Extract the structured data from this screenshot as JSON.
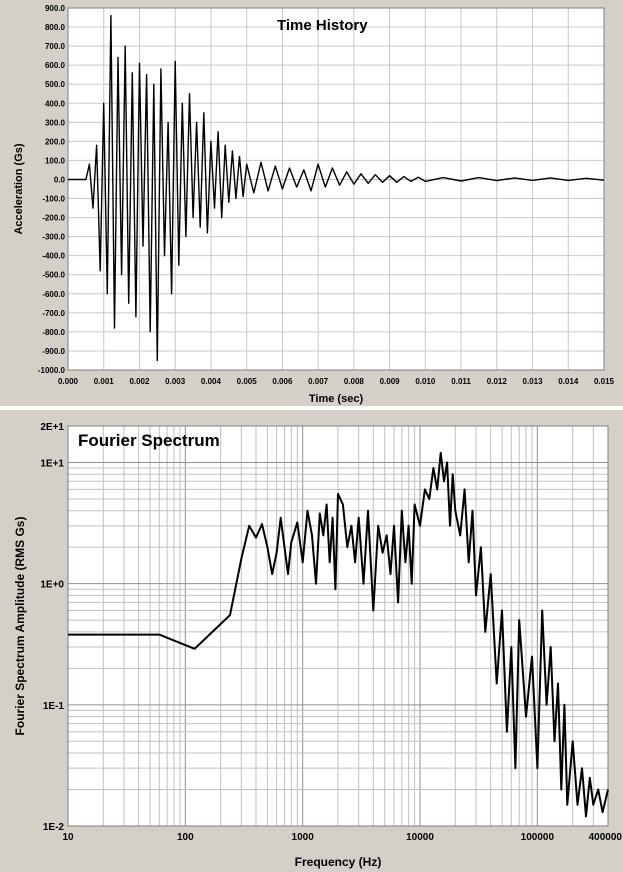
{
  "chart_data": [
    {
      "type": "line",
      "title": "Time History",
      "xlabel": "Time (sec)",
      "ylabel": "Acceleration (Gs)",
      "xlim": [
        0.0,
        0.015
      ],
      "ylim": [
        -1000.0,
        900.0
      ],
      "grid": true,
      "x_ticks": [
        "0.000",
        "0.001",
        "0.002",
        "0.003",
        "0.004",
        "0.005",
        "0.006",
        "0.007",
        "0.008",
        "0.009",
        "0.010",
        "0.011",
        "0.012",
        "0.013",
        "0.014",
        "0.015"
      ],
      "y_ticks": [
        "900.0",
        "800.0",
        "700.0",
        "600.0",
        "500.0",
        "400.0",
        "300.0",
        "200.0",
        "100.0",
        "0.0",
        "-100.0",
        "-200.0",
        "-300.0",
        "-400.0",
        "-500.0",
        "-600.0",
        "-700.0",
        "-800.0",
        "-900.0",
        "-1000.0"
      ],
      "series": [
        {
          "x": [
            0.0,
            0.0005,
            0.0006,
            0.0007,
            0.0008,
            0.0009,
            0.001,
            0.0011,
            0.0012,
            0.0013,
            0.0014,
            0.0015,
            0.0016,
            0.0017,
            0.0018,
            0.0019,
            0.002,
            0.0021,
            0.0022,
            0.0023,
            0.0024,
            0.0025,
            0.0026,
            0.0027,
            0.0028,
            0.0029,
            0.003,
            0.0031,
            0.0032,
            0.0033,
            0.0034,
            0.0035,
            0.0036,
            0.0037,
            0.0038,
            0.0039,
            0.004,
            0.0041,
            0.0042,
            0.0043,
            0.0044,
            0.0045,
            0.0046,
            0.0047,
            0.0048,
            0.0049,
            0.005,
            0.0052,
            0.0054,
            0.0056,
            0.0058,
            0.006,
            0.0062,
            0.0064,
            0.0066,
            0.0068,
            0.007,
            0.0072,
            0.0074,
            0.0076,
            0.0078,
            0.008,
            0.0082,
            0.0084,
            0.0086,
            0.0088,
            0.009,
            0.0092,
            0.0094,
            0.0096,
            0.0098,
            0.01,
            0.0105,
            0.011,
            0.0115,
            0.012,
            0.0125,
            0.013,
            0.0135,
            0.014,
            0.0145,
            0.015
          ],
          "values": [
            0,
            0,
            80,
            -150,
            180,
            -480,
            400,
            -600,
            860,
            -780,
            640,
            -500,
            700,
            -650,
            560,
            -720,
            610,
            -350,
            550,
            -800,
            500,
            -950,
            580,
            -400,
            300,
            -600,
            620,
            -450,
            400,
            -300,
            450,
            -200,
            300,
            -250,
            350,
            -280,
            200,
            -150,
            250,
            -200,
            180,
            -120,
            150,
            -100,
            120,
            -90,
            80,
            -70,
            90,
            -60,
            70,
            -50,
            60,
            -40,
            50,
            -60,
            80,
            -40,
            60,
            -30,
            40,
            -25,
            30,
            -20,
            25,
            -15,
            20,
            -15,
            15,
            -10,
            12,
            -10,
            10,
            -8,
            10,
            -6,
            8,
            -5,
            8,
            -5,
            6,
            -4
          ]
        }
      ]
    },
    {
      "type": "line",
      "title": "Fourier Spectrum",
      "xlabel": "Frequency (Hz)",
      "ylabel": "Fourier Spectrum Amplitude (RMS Gs)",
      "xscale": "log",
      "yscale": "log",
      "xlim": [
        10,
        400000
      ],
      "ylim": [
        0.01,
        20
      ],
      "grid": true,
      "x_ticks": [
        "10",
        "100",
        "1000",
        "10000",
        "100000",
        "400000"
      ],
      "y_ticks": [
        "2E+1",
        "1E+1",
        "1E+0",
        "1E-1",
        "1E-2"
      ],
      "series": [
        {
          "x": [
            10,
            60,
            120,
            240,
            300,
            350,
            400,
            450,
            500,
            550,
            600,
            650,
            700,
            750,
            800,
            900,
            1000,
            1100,
            1200,
            1300,
            1400,
            1500,
            1600,
            1700,
            1800,
            1900,
            2000,
            2200,
            2400,
            2600,
            2800,
            3000,
            3300,
            3600,
            4000,
            4400,
            4800,
            5200,
            5600,
            6000,
            6500,
            7000,
            7500,
            8000,
            8500,
            9000,
            10000,
            11000,
            12000,
            13000,
            14000,
            15000,
            16000,
            17000,
            18000,
            19000,
            20000,
            22000,
            24000,
            26000,
            28000,
            30000,
            33000,
            36000,
            40000,
            45000,
            50000,
            55000,
            60000,
            65000,
            70000,
            80000,
            90000,
            100000,
            110000,
            120000,
            130000,
            140000,
            150000,
            160000,
            170000,
            180000,
            200000,
            220000,
            240000,
            260000,
            280000,
            300000,
            330000,
            360000,
            400000
          ],
          "values": [
            0.38,
            0.38,
            0.29,
            0.55,
            1.6,
            3.0,
            2.4,
            3.1,
            2.0,
            1.2,
            1.8,
            3.5,
            2.0,
            1.2,
            2.2,
            3.2,
            1.5,
            4.0,
            2.5,
            1.0,
            3.8,
            2.5,
            4.5,
            1.5,
            3.5,
            0.9,
            5.5,
            4.5,
            2.0,
            3.0,
            1.5,
            3.5,
            1.0,
            4.0,
            0.6,
            3.0,
            1.8,
            2.5,
            1.2,
            3.0,
            0.7,
            4.0,
            1.5,
            3.0,
            1.0,
            4.5,
            3.0,
            6.0,
            5.0,
            9.0,
            6.0,
            12.0,
            7.0,
            10.0,
            3.0,
            8.0,
            4.0,
            2.5,
            6.0,
            1.5,
            4.0,
            0.8,
            2.0,
            0.4,
            1.2,
            0.15,
            0.6,
            0.06,
            0.3,
            0.03,
            0.5,
            0.08,
            0.25,
            0.03,
            0.6,
            0.1,
            0.3,
            0.05,
            0.15,
            0.02,
            0.1,
            0.015,
            0.05,
            0.015,
            0.03,
            0.012,
            0.025,
            0.015,
            0.02,
            0.013,
            0.02
          ]
        }
      ]
    }
  ]
}
